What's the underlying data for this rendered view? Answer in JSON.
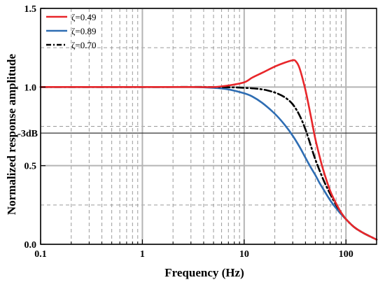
{
  "chart_data": {
    "type": "line",
    "xlabel": "Frequency (Hz)",
    "ylabel": "Normalized response amplitude",
    "xscale": "log",
    "xlim": [
      0.1,
      200
    ],
    "ylim": [
      0.0,
      1.5
    ],
    "grid": "on (major solid, minor dashed)",
    "legend_position": "top-left",
    "x_ticks": [
      {
        "value": 0.1,
        "label": "0.1"
      },
      {
        "value": 1,
        "label": "1"
      },
      {
        "value": 10,
        "label": "10"
      },
      {
        "value": 100,
        "label": "100"
      }
    ],
    "y_ticks": [
      {
        "value": 0.0,
        "label": "0.0"
      },
      {
        "value": 0.5,
        "label": "0.5"
      },
      {
        "value": 1.0,
        "label": "1.0"
      },
      {
        "value": 1.5,
        "label": "1.5"
      }
    ],
    "annotations": [
      {
        "label": "-3dB",
        "y": 0.707
      }
    ],
    "series": [
      {
        "name": "ζ=0.49",
        "color": "#e8262a",
        "dash": "solid",
        "x": [
          0.1,
          1,
          3,
          5,
          7,
          10,
          12,
          15,
          20,
          25,
          30,
          32,
          35,
          40,
          45,
          50,
          55,
          60,
          70,
          80,
          90,
          100,
          120,
          150,
          200
        ],
        "y": [
          1.0,
          1.0,
          1.0,
          1.0,
          1.01,
          1.03,
          1.06,
          1.09,
          1.13,
          1.155,
          1.17,
          1.165,
          1.12,
          0.98,
          0.82,
          0.67,
          0.56,
          0.47,
          0.34,
          0.26,
          0.2,
          0.16,
          0.11,
          0.07,
          0.03
        ]
      },
      {
        "name": "ζ=0.89",
        "color": "#2e6db3",
        "dash": "solid",
        "x": [
          0.1,
          1,
          3,
          5,
          7,
          10,
          12,
          15,
          20,
          25,
          30,
          35,
          40,
          45,
          50,
          55,
          60,
          70,
          80,
          90,
          100,
          120,
          150,
          200
        ],
        "y": [
          1.0,
          1.0,
          1.0,
          0.995,
          0.985,
          0.96,
          0.94,
          0.9,
          0.83,
          0.76,
          0.69,
          0.62,
          0.55,
          0.49,
          0.44,
          0.39,
          0.35,
          0.28,
          0.23,
          0.19,
          0.16,
          0.11,
          0.07,
          0.03
        ]
      },
      {
        "name": "ζ=0.70",
        "color": "#000000",
        "dash": "dash-dot",
        "x": [
          0.1,
          1,
          5,
          10,
          15,
          20,
          25,
          30,
          35,
          40,
          45,
          50,
          60,
          70,
          80,
          90,
          100,
          120,
          150,
          200
        ],
        "y": [
          1.0,
          1.0,
          1.0,
          0.995,
          0.985,
          0.965,
          0.935,
          0.89,
          0.82,
          0.73,
          0.63,
          0.54,
          0.41,
          0.32,
          0.25,
          0.2,
          0.16,
          0.11,
          0.07,
          0.03
        ]
      }
    ]
  }
}
